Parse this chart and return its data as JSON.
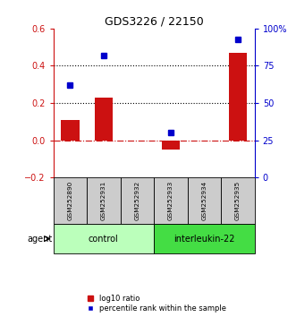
{
  "title": "GDS3226 / 22150",
  "samples": [
    "GSM252890",
    "GSM252931",
    "GSM252932",
    "GSM252933",
    "GSM252934",
    "GSM252935"
  ],
  "log10_ratio": [
    0.11,
    0.23,
    0.0,
    -0.05,
    0.0,
    0.47
  ],
  "percentile_rank": [
    62,
    82,
    null,
    30,
    null,
    93
  ],
  "groups": [
    {
      "label": "control",
      "indices": [
        0,
        1,
        2
      ],
      "color": "#bbffbb"
    },
    {
      "label": "interleukin-22",
      "indices": [
        3,
        4,
        5
      ],
      "color": "#44dd44"
    }
  ],
  "bar_color": "#cc1111",
  "dot_color": "#0000cc",
  "bar_width": 0.55,
  "left_ylim": [
    -0.2,
    0.6
  ],
  "right_ylim": [
    0,
    100
  ],
  "left_yticks": [
    -0.2,
    0.0,
    0.2,
    0.4,
    0.6
  ],
  "right_yticks": [
    0,
    25,
    50,
    75,
    100
  ],
  "right_yticklabels": [
    "0",
    "25",
    "50",
    "75",
    "100%"
  ],
  "left_color": "#cc1111",
  "right_color": "#0000cc",
  "hlines": [
    0.2,
    0.4
  ],
  "agent_label": "agent",
  "legend_bar_label": "log10 ratio",
  "legend_dot_label": "percentile rank within the sample",
  "figsize": [
    3.31,
    3.54
  ],
  "dpi": 100,
  "sample_box_color": "#cccccc",
  "dot_marker_size": 5
}
